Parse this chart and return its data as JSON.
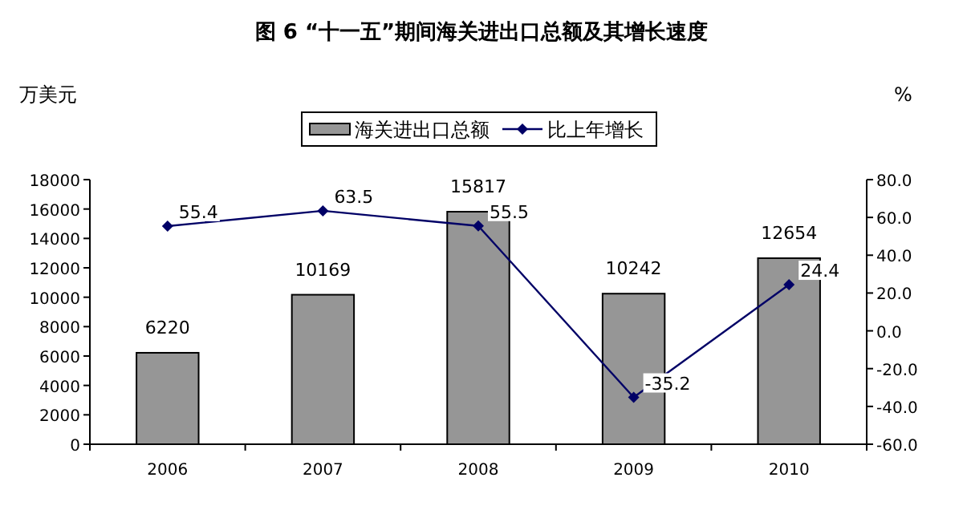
{
  "chart_data": {
    "type": "bar",
    "title": "图 6 “十一五”期间海关进出口总额及其增长速度",
    "ylabel": "万美元",
    "y2label": "%",
    "categories": [
      "2006",
      "2007",
      "2008",
      "2009",
      "2010"
    ],
    "series": [
      {
        "name": "海关进出口总额",
        "color": "#969696",
        "values": [
          6220,
          10169,
          15817,
          10242,
          12654
        ]
      },
      {
        "name": "比上年增长",
        "type": "line",
        "axis": "y2",
        "color": "#000066",
        "marker": "diamond",
        "values": [
          55.4,
          63.5,
          55.5,
          -35.2,
          24.4
        ]
      }
    ],
    "ylim": [
      0,
      18000
    ],
    "yticks": [
      0,
      2000,
      4000,
      6000,
      8000,
      10000,
      12000,
      14000,
      16000,
      18000
    ],
    "y2lim": [
      -60,
      80
    ],
    "y2ticks": [
      {
        "value": -60,
        "label": "-60.0"
      },
      {
        "value": -40,
        "label": "-40.0"
      },
      {
        "value": -20,
        "label": "-20.0"
      },
      {
        "value": 0,
        "label": "0.0"
      },
      {
        "value": 20,
        "label": "20.0"
      },
      {
        "value": 40,
        "label": "40.0"
      },
      {
        "value": 60,
        "label": "60.0"
      },
      {
        "value": 80,
        "label": "80.0"
      }
    ],
    "data_labels": true,
    "legend": "top",
    "grid": false
  }
}
